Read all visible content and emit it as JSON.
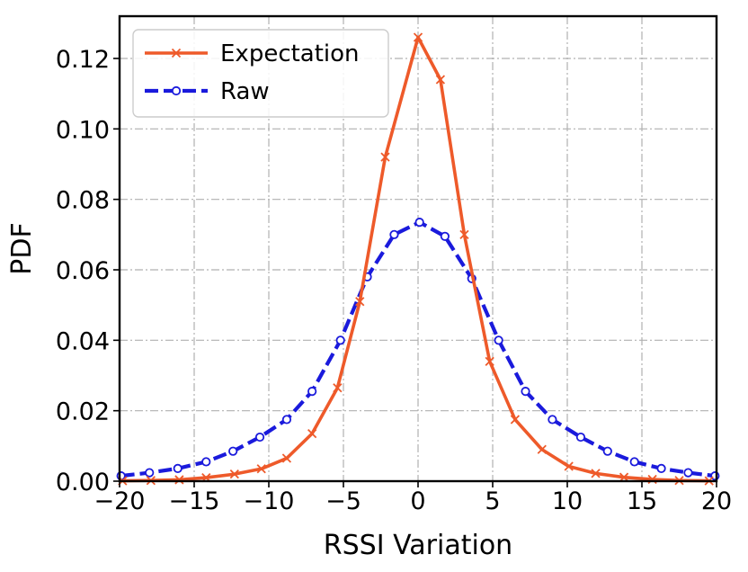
{
  "chart_data": {
    "type": "line",
    "title": "",
    "xlabel": "RSSI Variation",
    "ylabel": "PDF",
    "xlim": [
      -20,
      20
    ],
    "ylim": [
      0,
      0.132
    ],
    "xticks": [
      -20,
      -15,
      -10,
      -5,
      0,
      5,
      10,
      15,
      20
    ],
    "xtick_labels": [
      "−20",
      "−15",
      "−10",
      "−5",
      "0",
      "5",
      "10",
      "15",
      "20"
    ],
    "yticks": [
      0.0,
      0.02,
      0.04,
      0.06,
      0.08,
      0.1,
      0.12
    ],
    "ytick_labels": [
      "0.00",
      "0.02",
      "0.04",
      "0.06",
      "0.08",
      "0.10",
      "0.12"
    ],
    "grid": true,
    "legend_position": "top-left",
    "series": [
      {
        "name": "Expectation",
        "color": "#EE5A2A",
        "linestyle": "solid",
        "marker": "x",
        "x": [
          -19.8,
          -17.9,
          -16.0,
          -14.2,
          -12.3,
          -10.5,
          -8.8,
          -7.1,
          -5.4,
          -3.9,
          -2.2,
          0.0,
          1.5,
          3.1,
          4.8,
          6.5,
          8.3,
          10.1,
          11.9,
          13.8,
          15.7,
          17.5,
          19.5
        ],
        "y": [
          0.0001,
          0.0002,
          0.0004,
          0.001,
          0.002,
          0.0035,
          0.0065,
          0.0135,
          0.0265,
          0.051,
          0.092,
          0.126,
          0.114,
          0.07,
          0.034,
          0.0175,
          0.009,
          0.0042,
          0.0022,
          0.0011,
          0.0005,
          0.0002,
          0.0001
        ]
      },
      {
        "name": "Raw",
        "color": "#1A1ADC",
        "linestyle": "dashed",
        "marker": "o",
        "x": [
          -19.9,
          -18.0,
          -16.1,
          -14.2,
          -12.4,
          -10.6,
          -8.8,
          -7.1,
          -5.2,
          -3.4,
          -1.6,
          0.1,
          1.8,
          3.6,
          5.4,
          7.2,
          9.0,
          10.9,
          12.7,
          14.5,
          16.3,
          18.1,
          19.9
        ],
        "y": [
          0.0015,
          0.0024,
          0.0036,
          0.0055,
          0.0085,
          0.0125,
          0.0175,
          0.0255,
          0.04,
          0.058,
          0.07,
          0.0735,
          0.0695,
          0.0575,
          0.04,
          0.0255,
          0.0175,
          0.0125,
          0.0085,
          0.0055,
          0.0036,
          0.0024,
          0.0015
        ]
      }
    ]
  }
}
